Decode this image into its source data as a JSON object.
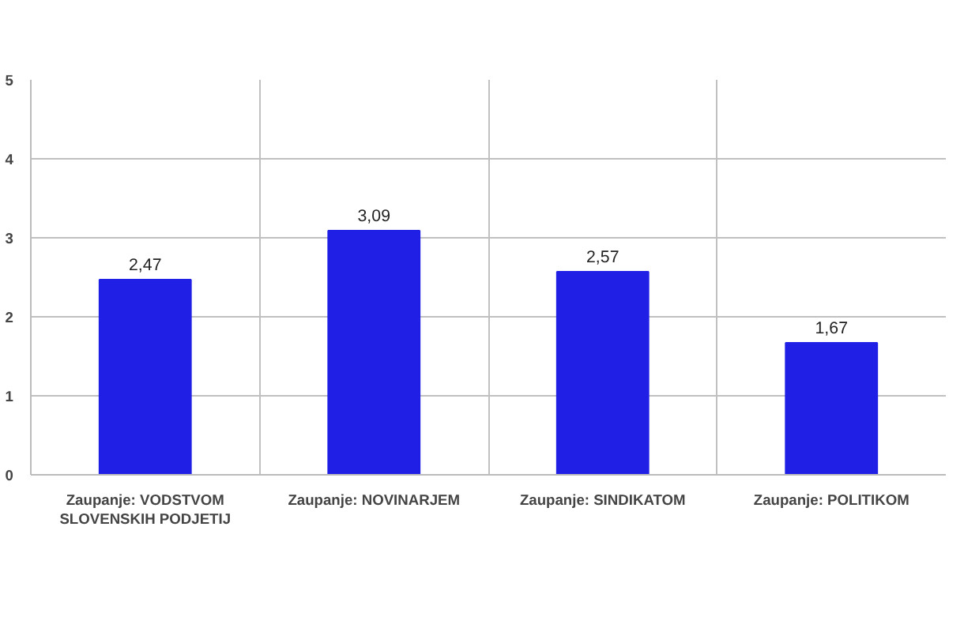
{
  "chart_data": {
    "type": "bar",
    "categories": [
      "Zaupanje: VODSTVOM SLOVENSKIH PODJETIJ",
      "Zaupanje: NOVINARJEM",
      "Zaupanje: SINDIKATOM",
      "Zaupanje: POLITIKOM"
    ],
    "values": [
      2.47,
      3.09,
      2.57,
      1.67
    ],
    "color": "#1f1fe6",
    "value_labels": [
      "2,47",
      "3,09",
      "2,57",
      "1,67"
    ],
    "ylim": [
      0,
      5
    ],
    "yticks": [
      0,
      1,
      2,
      3,
      4,
      5
    ],
    "grid": true
  }
}
